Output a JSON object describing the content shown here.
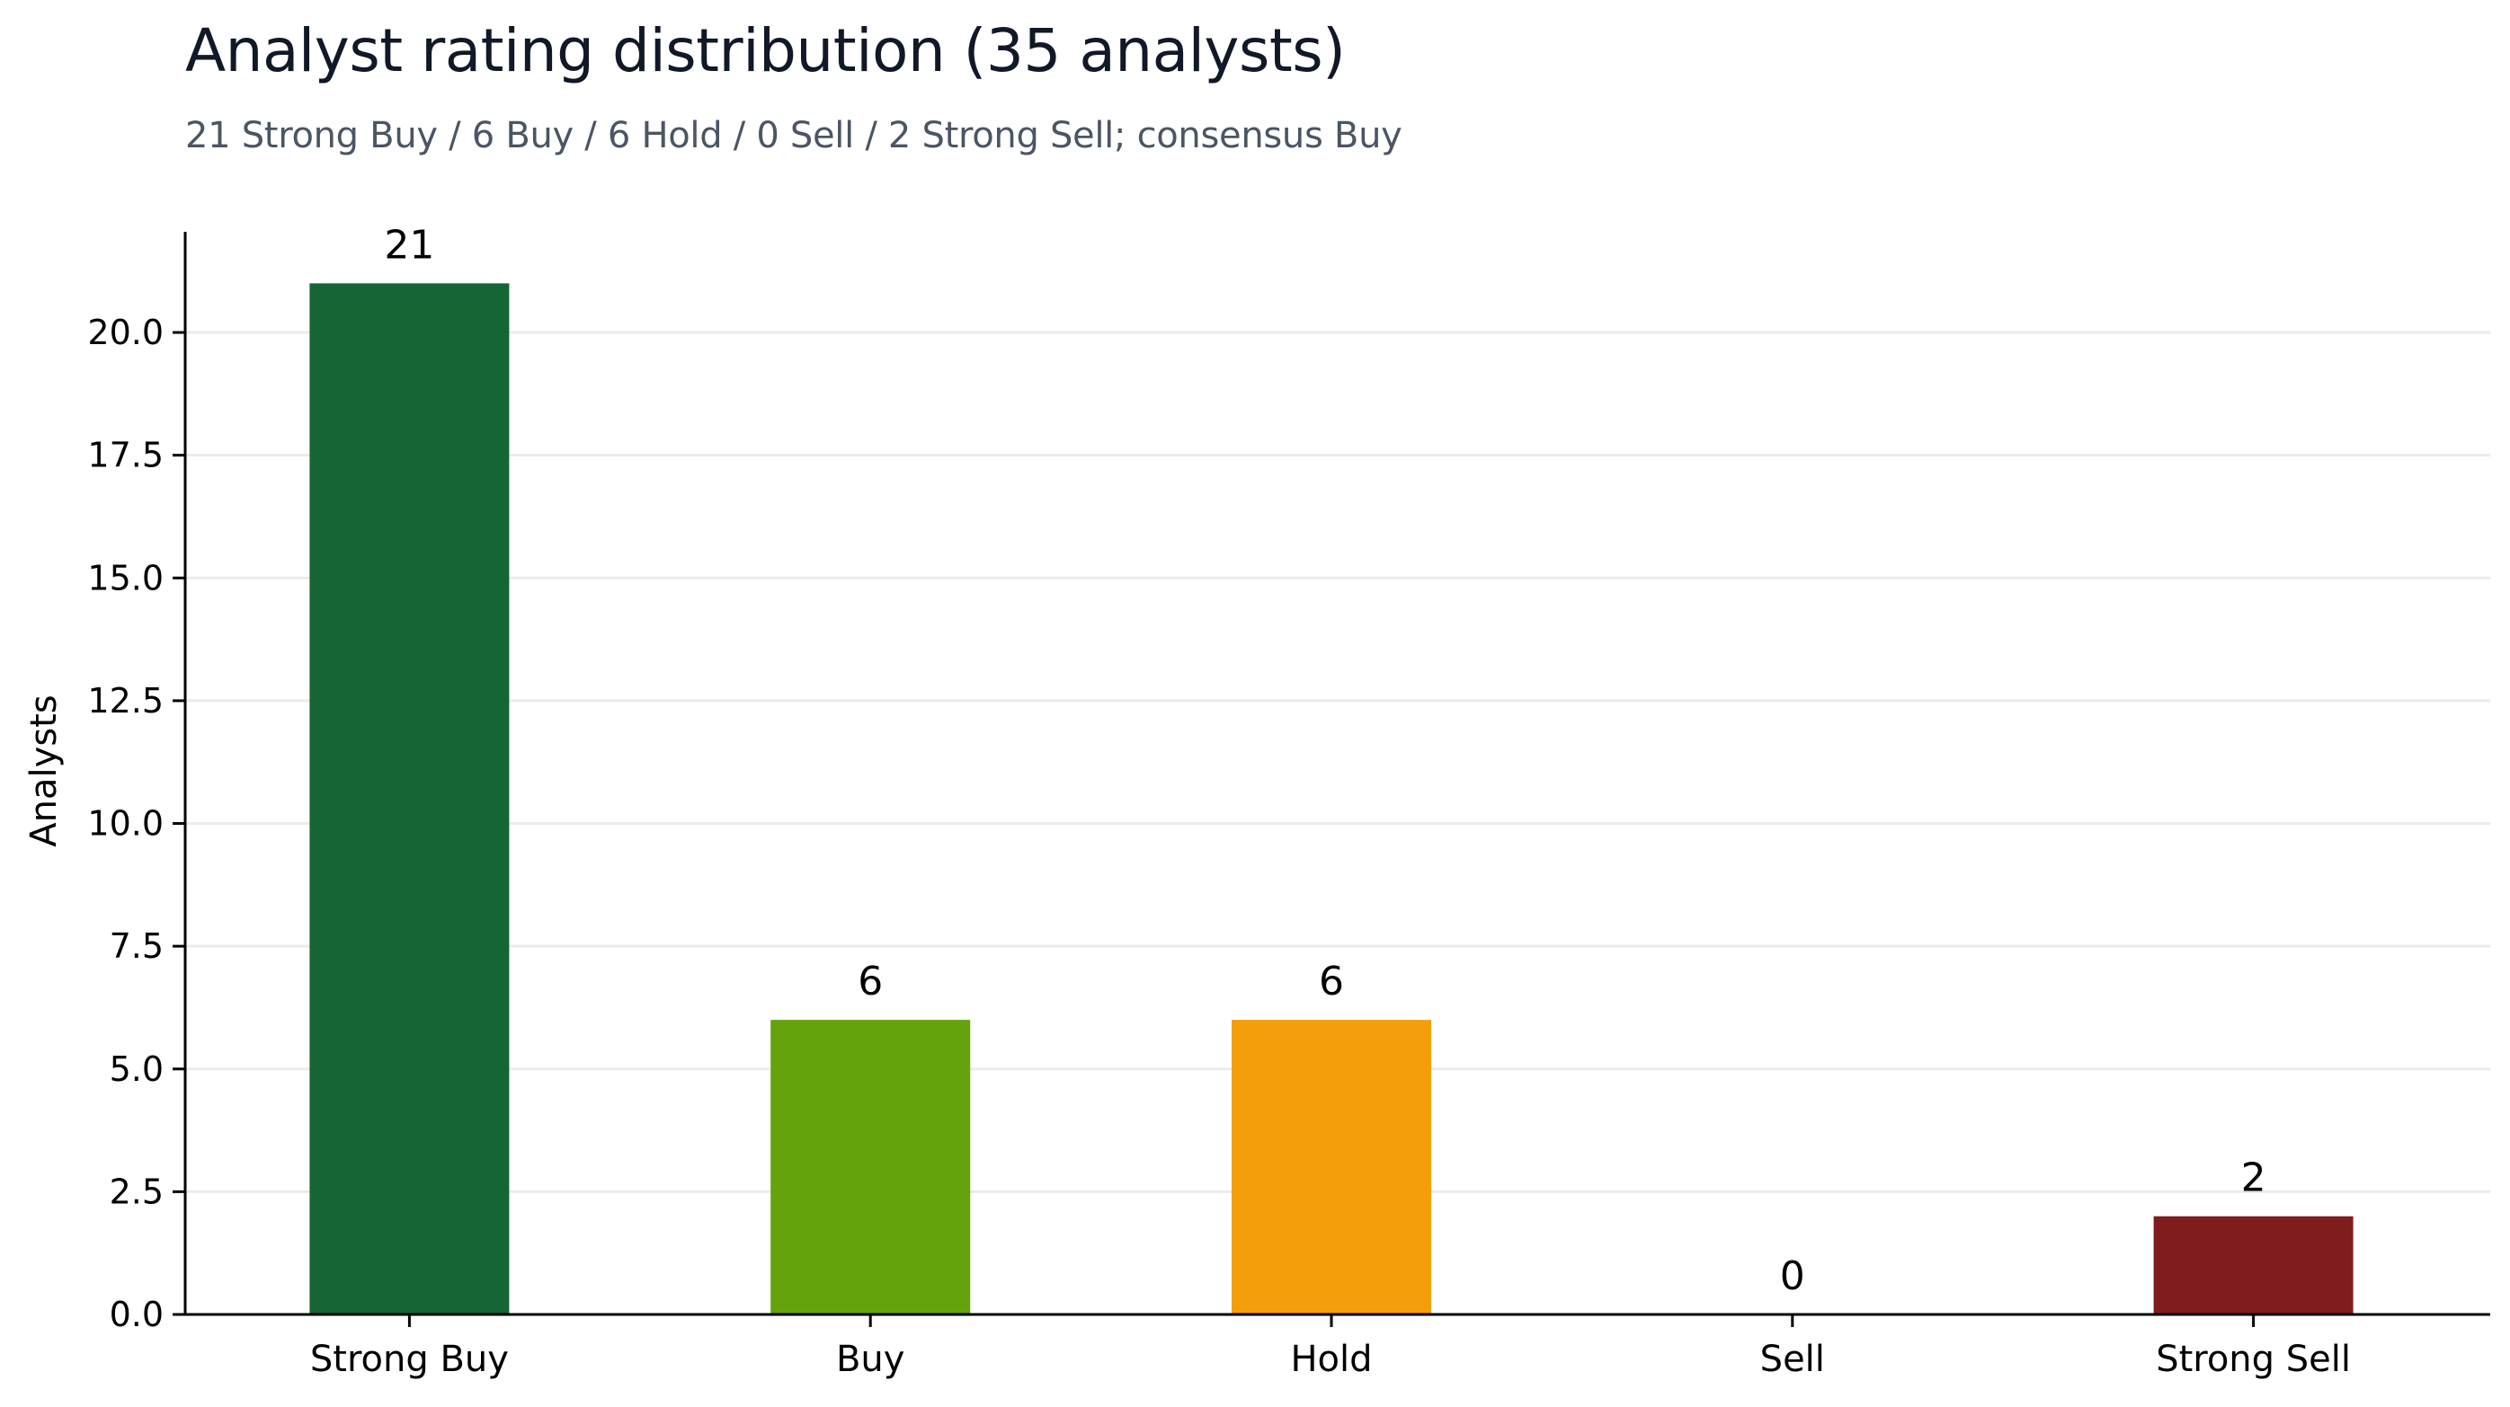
{
  "chart_data": {
    "type": "bar",
    "title": "Analyst rating distribution (35 analysts)",
    "subtitle": "21 Strong Buy / 6 Buy / 6 Hold / 0 Sell / 2 Strong Sell; consensus Buy",
    "xlabel": "",
    "ylabel": "Analysts",
    "categories": [
      "Strong Buy",
      "Buy",
      "Hold",
      "Sell",
      "Strong Sell"
    ],
    "values": [
      21,
      6,
      6,
      0,
      2
    ],
    "value_labels": [
      "21",
      "6",
      "6",
      "0",
      "2"
    ],
    "colors": [
      "#166534",
      "#65a30d",
      "#f59e0b",
      "#dc2626",
      "#7f1d1d"
    ],
    "ylim": [
      0,
      22.05
    ],
    "yticks": [
      0,
      2.5,
      5,
      7.5,
      10,
      12.5,
      15,
      17.5,
      20
    ],
    "ytick_labels": [
      "0.0",
      "2.5",
      "5.0",
      "7.5",
      "10.0",
      "12.5",
      "15.0",
      "17.5",
      "20.0"
    ],
    "grid": "horizontal",
    "legend": "none"
  }
}
